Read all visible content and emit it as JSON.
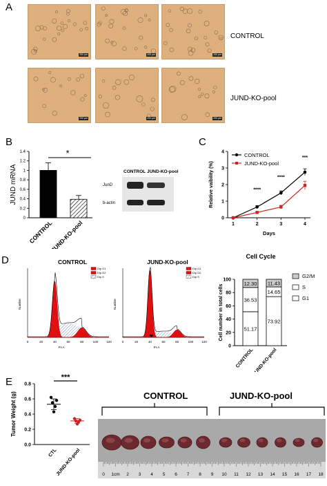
{
  "panel_letters": {
    "a": "A",
    "b": "B",
    "c": "C",
    "d": "D",
    "e": "E"
  },
  "panel_a": {
    "row_labels": [
      "CONTROL",
      "JUND-KO-pool"
    ],
    "scale_bar": "200 μm"
  },
  "panel_b": {
    "western": {
      "col_labels": [
        "CONTROL",
        "JUND-KO-pool"
      ],
      "row_labels": [
        "JunD",
        "b-actin"
      ]
    },
    "significance": "*"
  },
  "panel_c": {},
  "panel_d": {
    "histograms": [
      {
        "title": "CONTROL",
        "legend": [
          "Dip G1",
          "Dip G2",
          "Dip S"
        ],
        "xlabel": "PI-A",
        "ylabel": "Number",
        "xticks": [
          "0",
          "20",
          "40",
          "60",
          "80",
          "100",
          "120"
        ]
      },
      {
        "title": "JUND-KO-pool",
        "legend": [
          "Dip G1",
          "Dip G2",
          "Dip S"
        ],
        "xlabel": "PI-A",
        "ylabel": "Number",
        "xticks": [
          "0",
          "20",
          "40",
          "60",
          "80",
          "100",
          "120"
        ]
      }
    ]
  },
  "panel_e": {
    "significance": "***",
    "tumor_photo": {
      "groups": [
        "CONTROL",
        "JUND-KO-pool"
      ],
      "ruler_labels": [
        "0",
        "1cm",
        "2",
        "3",
        "4",
        "5",
        "6",
        "7",
        "8",
        "9",
        "10",
        "11",
        "12",
        "13",
        "14",
        "15",
        "16",
        "17",
        "18"
      ]
    }
  },
  "chart_data": [
    {
      "id": "B-bar",
      "type": "bar",
      "categories": [
        "CONTROL",
        "JUND-KO-pool"
      ],
      "values": [
        1.0,
        0.39
      ],
      "errors": [
        0.16,
        0.08
      ],
      "ylabel": "JUND mRNA",
      "ylim": [
        0,
        1.4
      ],
      "yticks": [
        "0",
        "0.2",
        "0.4",
        "0.6",
        "0.8",
        "1",
        "1.2",
        "1.4"
      ],
      "colors": [
        "#000000",
        "hatched"
      ]
    },
    {
      "id": "C-line",
      "type": "line",
      "x": [
        1,
        2,
        3,
        4
      ],
      "xticks": [
        "1",
        "2",
        "3",
        "4"
      ],
      "series": [
        {
          "name": "CONTROL",
          "values": [
            0.0,
            0.65,
            1.5,
            2.75
          ],
          "errors": [
            0.03,
            0.08,
            0.12,
            0.2
          ],
          "color": "#000000"
        },
        {
          "name": "JUND-KO-pool",
          "values": [
            0.0,
            0.32,
            0.65,
            1.95
          ],
          "errors": [
            0.03,
            0.05,
            0.1,
            0.25
          ],
          "color": "#cc2222"
        }
      ],
      "xlabel": "Days",
      "ylabel": "Relative vaibility (%)",
      "ylim": [
        0,
        4
      ],
      "yticks": [
        "0",
        "1",
        "2",
        "3",
        "4"
      ],
      "significance": [
        {
          "x": 2,
          "label": "****"
        },
        {
          "x": 3,
          "label": "****"
        },
        {
          "x": 4,
          "label": "***"
        }
      ],
      "legend": "top-left"
    },
    {
      "id": "D-stacked",
      "type": "bar",
      "title": "Cell Cycle",
      "categories": [
        "CONTROL",
        "JUND-KO-pool"
      ],
      "series": [
        {
          "name": "G1",
          "values": [
            51.17,
            73.92
          ],
          "color": "#ffffff"
        },
        {
          "name": "S",
          "values": [
            36.53,
            14.65
          ],
          "color": "#ffffff"
        },
        {
          "name": "G2/M",
          "values": [
            12.3,
            11.43
          ],
          "color": "#cccccc"
        }
      ],
      "ylabel": "Cell number in total cells",
      "ylim": [
        0,
        100
      ],
      "yticks": [
        "0",
        "20",
        "40",
        "60",
        "80",
        "100"
      ],
      "legend": "right"
    },
    {
      "id": "E-scatter",
      "type": "scatter",
      "categories": [
        "CTL",
        "JUND-KO-pool"
      ],
      "series": [
        {
          "name": "CTL",
          "values": [
            0.62,
            0.58,
            0.55,
            0.5,
            0.43
          ],
          "mean": 0.53,
          "sd": 0.07,
          "color": "#000000"
        },
        {
          "name": "JUND-KO-pool",
          "values": [
            0.34,
            0.32,
            0.31,
            0.3,
            0.27
          ],
          "mean": 0.31,
          "sd": 0.03,
          "color": "#cc2222"
        }
      ],
      "ylabel": "Tumor Weight (g)",
      "ylim": [
        0,
        0.8
      ],
      "yticks": [
        "0.0",
        "0.2",
        "0.4",
        "0.6",
        "0.8"
      ]
    }
  ]
}
